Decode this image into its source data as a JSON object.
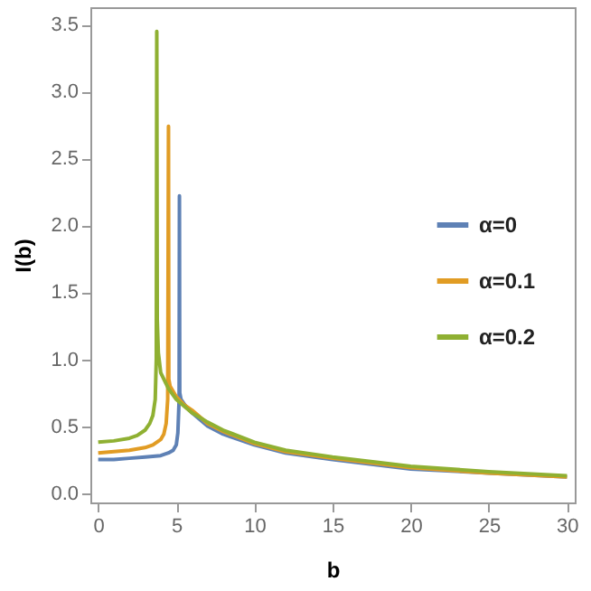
{
  "chart_data": {
    "type": "line",
    "xlabel": "b",
    "ylabel": "I(b)",
    "xlim": [
      -0.5,
      30.5
    ],
    "ylim": [
      -0.07,
      3.63
    ],
    "xticks": [
      0,
      5,
      10,
      15,
      20,
      25,
      30
    ],
    "yticks": [
      {
        "value": 0,
        "label": "0.0"
      },
      {
        "value": 0.5,
        "label": "0.5"
      },
      {
        "value": 1,
        "label": "1.0"
      },
      {
        "value": 1.5,
        "label": "1.5"
      },
      {
        "value": 2,
        "label": "2.0"
      },
      {
        "value": 2.5,
        "label": "2.5"
      },
      {
        "value": 3,
        "label": "3.0"
      },
      {
        "value": 3.5,
        "label": "3.5"
      }
    ],
    "legend": "right",
    "marker": "none",
    "line_style": "solid",
    "series": [
      {
        "name": "α=0",
        "color": "#5e81b5",
        "x": [
          0,
          1,
          2,
          3,
          4,
          4.5,
          4.8,
          5.0,
          5.1,
          5.18,
          5.2,
          5.22,
          5.3,
          5.6,
          6,
          7,
          8,
          10,
          12,
          15,
          20,
          25,
          30
        ],
        "values": [
          0.25,
          0.25,
          0.26,
          0.27,
          0.28,
          0.3,
          0.32,
          0.36,
          0.45,
          0.7,
          2.22,
          0.75,
          0.7,
          0.65,
          0.6,
          0.5,
          0.44,
          0.36,
          0.3,
          0.25,
          0.18,
          0.15,
          0.12
        ]
      },
      {
        "name": "α=0.1",
        "color": "#e19c24",
        "x": [
          0,
          1,
          2,
          3,
          3.5,
          4,
          4.2,
          4.35,
          4.45,
          4.5,
          4.52,
          4.6,
          5,
          5.5,
          6,
          7,
          8,
          10,
          12,
          15,
          20,
          25,
          30
        ],
        "values": [
          0.3,
          0.31,
          0.32,
          0.34,
          0.36,
          0.4,
          0.44,
          0.52,
          0.7,
          2.74,
          0.85,
          0.8,
          0.72,
          0.66,
          0.62,
          0.52,
          0.46,
          0.37,
          0.31,
          0.26,
          0.19,
          0.15,
          0.12
        ]
      },
      {
        "name": "α=0.2",
        "color": "#8fb032",
        "x": [
          0,
          1,
          2,
          2.5,
          3,
          3.3,
          3.5,
          3.65,
          3.72,
          3.75,
          3.78,
          3.85,
          4,
          4.5,
          5,
          5.5,
          6,
          7,
          8,
          10,
          12,
          15,
          20,
          25,
          30
        ],
        "values": [
          0.38,
          0.39,
          0.41,
          0.43,
          0.47,
          0.52,
          0.58,
          0.7,
          1.0,
          3.45,
          1.3,
          1.05,
          0.9,
          0.78,
          0.7,
          0.65,
          0.6,
          0.53,
          0.47,
          0.38,
          0.32,
          0.27,
          0.2,
          0.16,
          0.13
        ]
      }
    ]
  }
}
